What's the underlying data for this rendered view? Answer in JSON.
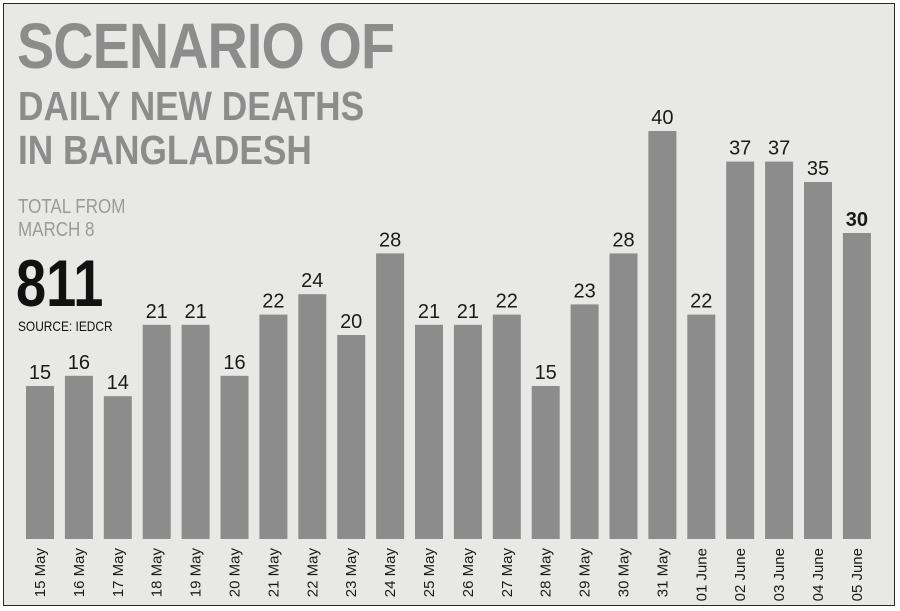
{
  "title": {
    "line1": "SCENARIO OF",
    "line2": "DAILY NEW DEATHS\nIN BANGLADESH"
  },
  "summary": {
    "label": "TOTAL FROM\nMARCH 8",
    "value": "811",
    "source": "SOURCE: IEDCR"
  },
  "colors": {
    "background": "#e8e8e6",
    "bar": "#8c8c8c",
    "title": "#8c8c8c",
    "text": "#1a1a1a"
  },
  "chart_data": {
    "type": "bar",
    "title": "SCENARIO OF DAILY NEW DEATHS IN BANGLADESH",
    "categories": [
      "15 May",
      "16 May",
      "17 May",
      "18 May",
      "19 May",
      "20 May",
      "21 May",
      "22 May",
      "23 May",
      "24 May",
      "25 May",
      "26 May",
      "27 May",
      "28 May",
      "29 May",
      "30 May",
      "31 May",
      "01 June",
      "02 June",
      "03 June",
      "04 June",
      "05 June"
    ],
    "values": [
      15,
      16,
      14,
      21,
      21,
      16,
      22,
      24,
      20,
      28,
      21,
      21,
      22,
      15,
      23,
      28,
      40,
      22,
      37,
      37,
      35,
      30
    ],
    "data_labels": true,
    "highlight_last_label_bold": true,
    "x_tick_rotation": "vertical",
    "ylim": [
      0,
      40
    ],
    "grid": false,
    "legend": "none"
  }
}
